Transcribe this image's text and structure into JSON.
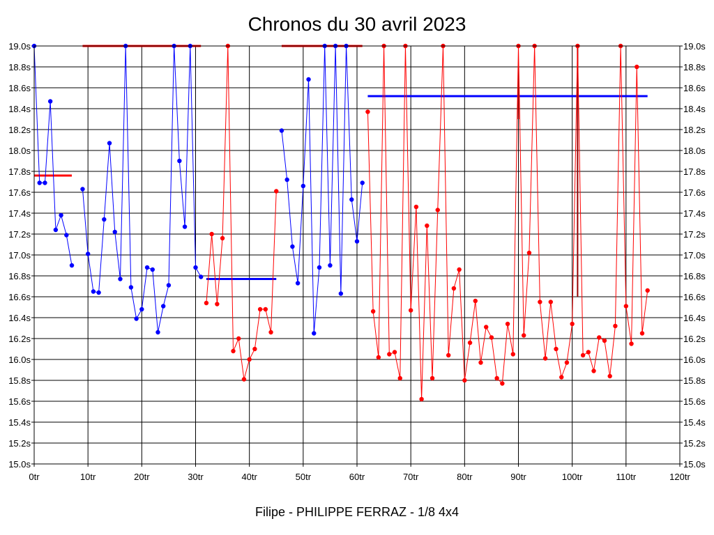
{
  "chart_data": {
    "type": "line",
    "title": "Chronos du 30 avril 2023",
    "subtitle": "Filipe - PHILIPPE FERRAZ - 1/8 4x4",
    "xlabel": "",
    "ylabel": "",
    "xlim": [
      0,
      120
    ],
    "ylim": [
      15.0,
      19.0
    ],
    "grid": true,
    "x_ticks": [
      0,
      10,
      20,
      30,
      40,
      50,
      60,
      70,
      80,
      90,
      100,
      110,
      120
    ],
    "x_tick_labels": [
      "0tr",
      "10tr",
      "20tr",
      "30tr",
      "40tr",
      "50tr",
      "60tr",
      "70tr",
      "80tr",
      "90tr",
      "100tr",
      "110tr",
      "120tr"
    ],
    "y_ticks": [
      15.0,
      15.2,
      15.4,
      15.6,
      15.8,
      16.0,
      16.2,
      16.4,
      16.6,
      16.8,
      17.0,
      17.2,
      17.4,
      17.6,
      17.8,
      18.0,
      18.2,
      18.4,
      18.6,
      18.8,
      19.0
    ],
    "y_tick_labels": [
      "15.0s",
      "15.2s",
      "15.4s",
      "15.6s",
      "15.8s",
      "16.0s",
      "16.2s",
      "16.4s",
      "16.6s",
      "16.8s",
      "17.0s",
      "17.2s",
      "17.4s",
      "17.6s",
      "17.8s",
      "18.0s",
      "18.2s",
      "18.4s",
      "18.6s",
      "18.8s",
      "19.0s"
    ],
    "series": [
      {
        "color": "#0000ff",
        "points": [
          [
            0,
            19.0
          ],
          [
            1,
            17.69
          ],
          [
            2,
            17.69
          ],
          [
            3,
            18.47
          ],
          [
            4,
            17.24
          ],
          [
            5,
            17.38
          ],
          [
            6,
            17.19
          ],
          [
            7,
            16.9
          ]
        ]
      },
      {
        "color": "#0000ff",
        "points": [
          [
            9,
            17.63
          ],
          [
            10,
            17.01
          ],
          [
            11,
            16.65
          ],
          [
            12,
            16.64
          ],
          [
            13,
            17.34
          ],
          [
            14,
            18.07
          ],
          [
            15,
            17.22
          ],
          [
            16,
            16.77
          ],
          [
            17,
            19.0
          ],
          [
            18,
            16.69
          ],
          [
            19,
            16.39
          ],
          [
            20,
            16.48
          ],
          [
            21,
            16.88
          ],
          [
            22,
            16.86
          ],
          [
            23,
            16.26
          ],
          [
            24,
            16.51
          ],
          [
            25,
            16.71
          ],
          [
            26,
            19.0
          ],
          [
            27,
            17.9
          ],
          [
            28,
            17.27
          ],
          [
            29,
            19.0
          ],
          [
            30,
            16.88
          ],
          [
            31,
            16.79
          ]
        ]
      },
      {
        "color": "#ff0000",
        "points": [
          [
            32,
            16.54
          ],
          [
            33,
            17.2
          ],
          [
            34,
            16.53
          ],
          [
            35,
            17.16
          ],
          [
            36,
            19.0
          ],
          [
            37,
            16.08
          ],
          [
            38,
            16.2
          ],
          [
            39,
            15.81
          ],
          [
            40,
            16.0
          ],
          [
            41,
            16.1
          ],
          [
            42,
            16.48
          ],
          [
            43,
            16.48
          ],
          [
            44,
            16.26
          ],
          [
            45,
            17.61
          ]
        ]
      },
      {
        "color": "#0000ff",
        "points": [
          [
            46,
            18.19
          ],
          [
            47,
            17.72
          ],
          [
            48,
            17.08
          ],
          [
            49,
            16.73
          ],
          [
            50,
            17.66
          ],
          [
            51,
            18.68
          ],
          [
            52,
            16.25
          ],
          [
            53,
            16.88
          ],
          [
            54,
            19.0
          ],
          [
            55,
            16.9
          ],
          [
            56,
            19.0
          ],
          [
            57,
            16.63
          ],
          [
            58,
            19.0
          ],
          [
            59,
            17.53
          ],
          [
            60,
            17.13
          ],
          [
            61,
            17.69
          ]
        ]
      },
      {
        "color": "#ff0000",
        "points": [
          [
            62,
            18.37
          ],
          [
            63,
            16.46
          ],
          [
            64,
            16.02
          ],
          [
            65,
            19.0
          ],
          [
            66,
            16.05
          ],
          [
            67,
            16.07
          ],
          [
            68,
            15.82
          ],
          [
            69,
            19.0
          ],
          [
            70,
            16.47
          ],
          [
            71,
            17.46
          ],
          [
            72,
            15.62
          ],
          [
            73,
            17.28
          ],
          [
            74,
            15.82
          ],
          [
            75,
            17.43
          ],
          [
            76,
            19.0
          ],
          [
            77,
            16.04
          ],
          [
            78,
            16.68
          ],
          [
            79,
            16.86
          ],
          [
            80,
            15.8
          ],
          [
            81,
            16.16
          ],
          [
            82,
            16.56
          ],
          [
            83,
            15.97
          ],
          [
            84,
            16.31
          ],
          [
            85,
            16.21
          ],
          [
            86,
            15.82
          ],
          [
            87,
            15.77
          ],
          [
            88,
            16.34
          ],
          [
            89,
            16.05
          ],
          [
            90,
            19.0
          ],
          [
            91,
            16.23
          ],
          [
            92,
            17.02
          ],
          [
            93,
            19.0
          ],
          [
            94,
            16.55
          ],
          [
            95,
            16.01
          ],
          [
            96,
            16.55
          ],
          [
            97,
            16.1
          ],
          [
            98,
            15.83
          ],
          [
            99,
            15.97
          ],
          [
            100,
            16.34
          ],
          [
            101,
            19.0
          ],
          [
            102,
            16.04
          ],
          [
            103,
            16.07
          ],
          [
            104,
            15.89
          ],
          [
            105,
            16.21
          ],
          [
            106,
            16.18
          ],
          [
            107,
            15.84
          ],
          [
            108,
            16.32
          ],
          [
            109,
            19.0
          ],
          [
            110,
            16.51
          ],
          [
            111,
            16.15
          ],
          [
            112,
            18.8
          ],
          [
            113,
            16.25
          ],
          [
            114,
            16.66
          ]
        ]
      }
    ],
    "average_lines": [
      {
        "color": "#ff0000",
        "x": [
          0,
          7
        ],
        "y": 17.76
      },
      {
        "color": "#ff0000",
        "x": [
          9,
          31
        ],
        "y": 19.0
      },
      {
        "color": "#0000ff",
        "x": [
          32,
          45
        ],
        "y": 16.77
      },
      {
        "color": "#ff0000",
        "x": [
          46,
          61
        ],
        "y": 19.0
      },
      {
        "color": "#0000ff",
        "x": [
          62,
          114
        ],
        "y": 18.52
      }
    ],
    "separators": [
      {
        "color": "#990000",
        "x": 90,
        "y": [
          18.3,
          18.8
        ]
      },
      {
        "color": "#990000",
        "x": 101,
        "y": [
          16.6,
          19.0
        ]
      }
    ]
  }
}
